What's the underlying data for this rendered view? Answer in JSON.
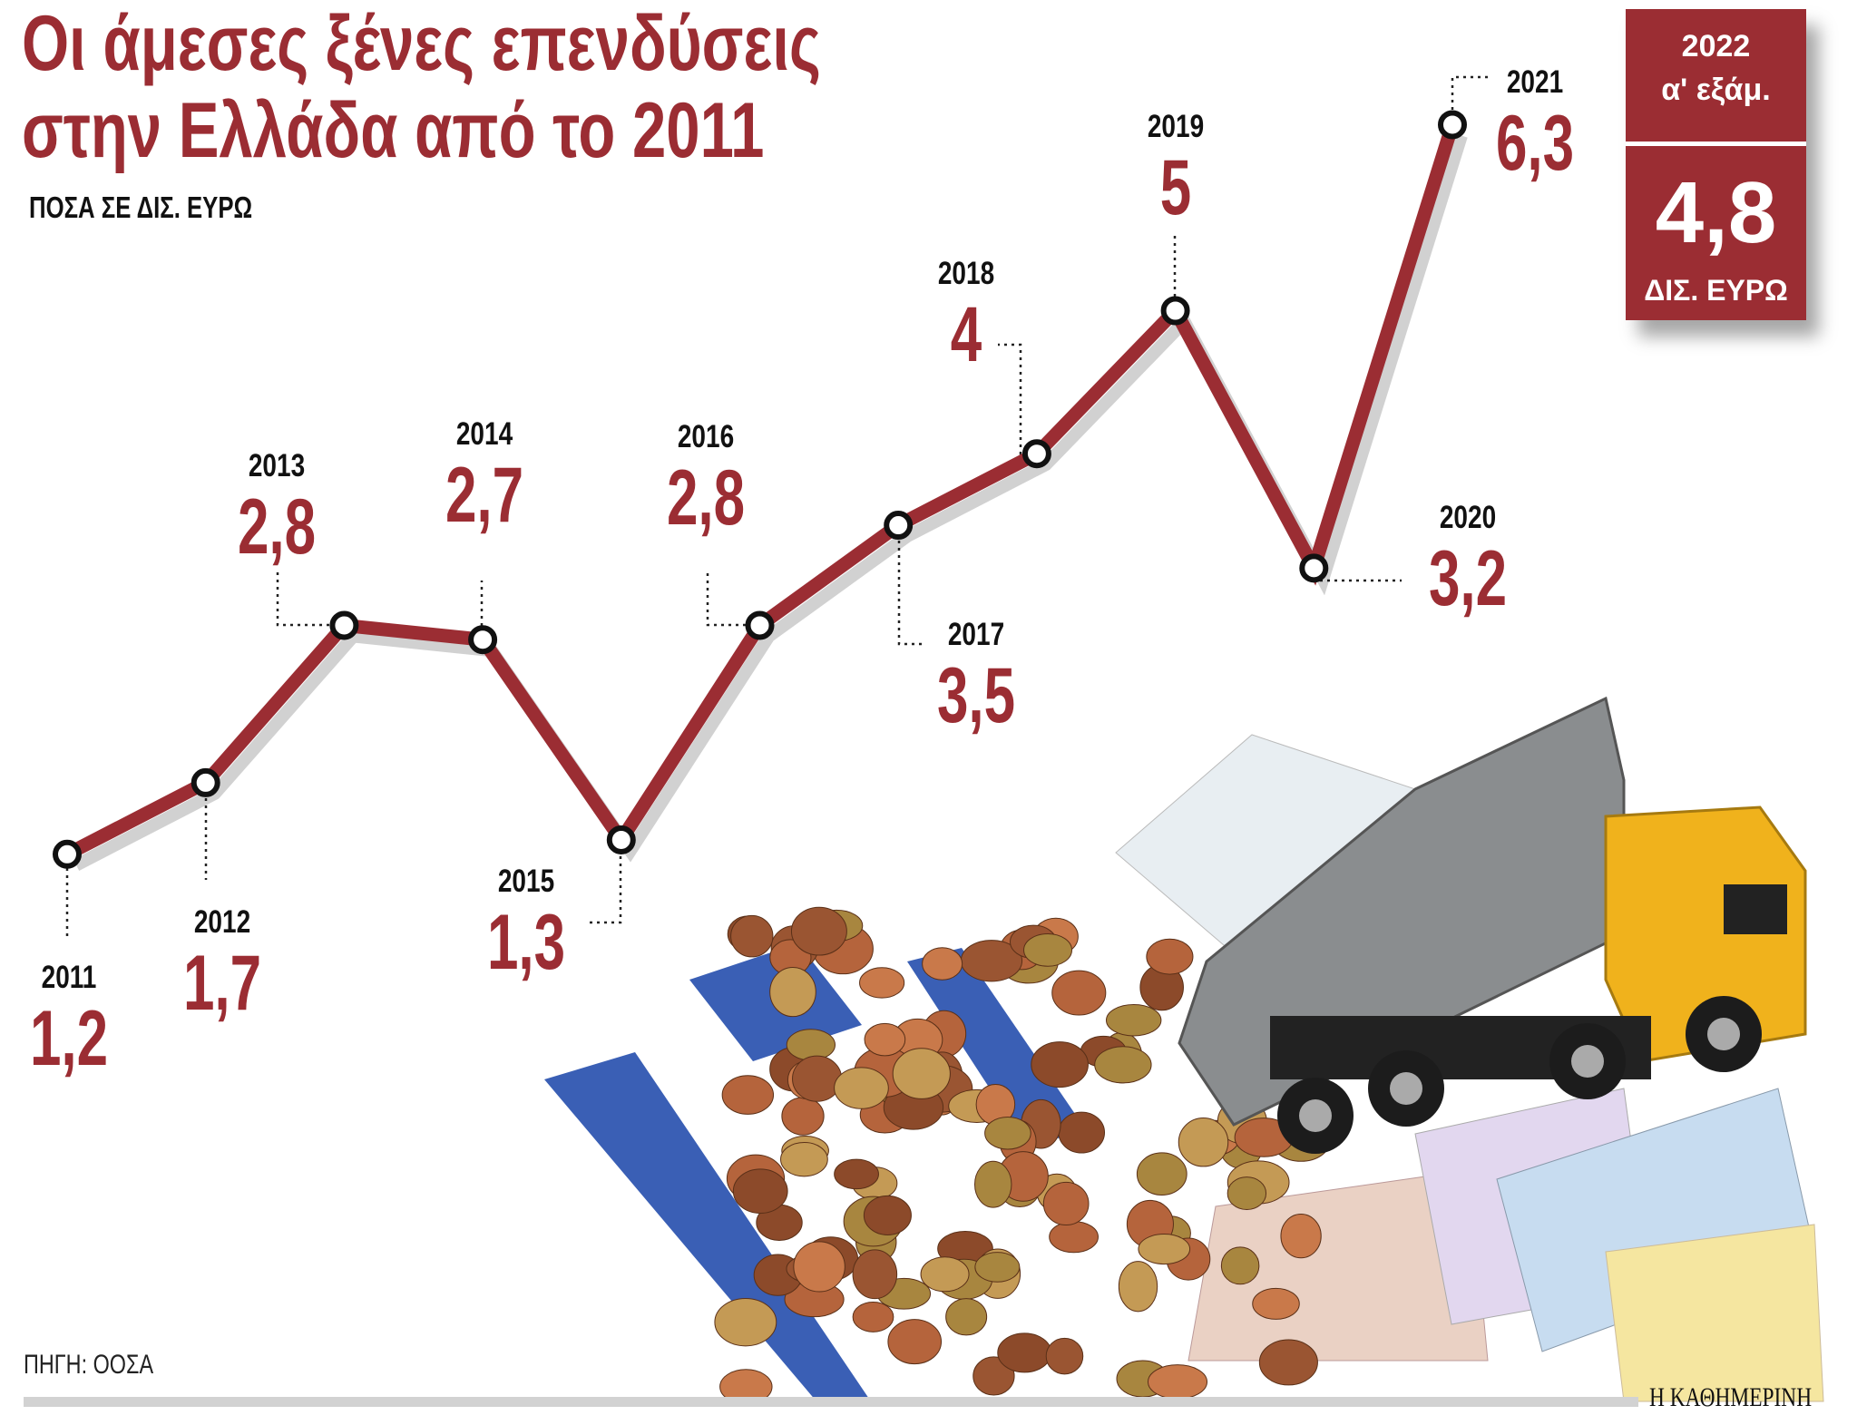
{
  "title_line1": "Οι άμεσες ξένες επενδύσεις",
  "title_line2": "στην Ελλάδα από το 2011",
  "subtitle": "ΠΟΣΑ ΣΕ ΔΙΣ. ΕΥΡΩ",
  "source": "ΠΗΓΗ: ΟΟΣΑ",
  "brand": "Η ΚΑΘΗΜΕΡΙΝΗ",
  "highlight_box": {
    "year": "2022",
    "period": "α' εξάμ.",
    "value": "4,8",
    "unit": "ΔΙΣ. ΕΥΡΩ"
  },
  "colors": {
    "line": "#9b2d33",
    "box": "#9b2d33",
    "label_value": "#9b2d33"
  },
  "chart_data": {
    "type": "line",
    "title": "Οι άμεσες ξένες επενδύσεις στην Ελλάδα από το 2011",
    "ylabel": "ΠΟΣΑ ΣΕ ΔΙΣ. ΕΥΡΩ",
    "grid": false,
    "categories": [
      "2011",
      "2012",
      "2013",
      "2014",
      "2015",
      "2016",
      "2017",
      "2018",
      "2019",
      "2020",
      "2021"
    ],
    "values": [
      1.2,
      1.7,
      2.8,
      2.7,
      1.3,
      2.8,
      3.5,
      4,
      5,
      3.2,
      6.3
    ],
    "value_labels": [
      "1,2",
      "1,7",
      "2,8",
      "2,7",
      "1,3",
      "2,8",
      "3,5",
      "4",
      "5",
      "3,2",
      "6,3"
    ]
  }
}
